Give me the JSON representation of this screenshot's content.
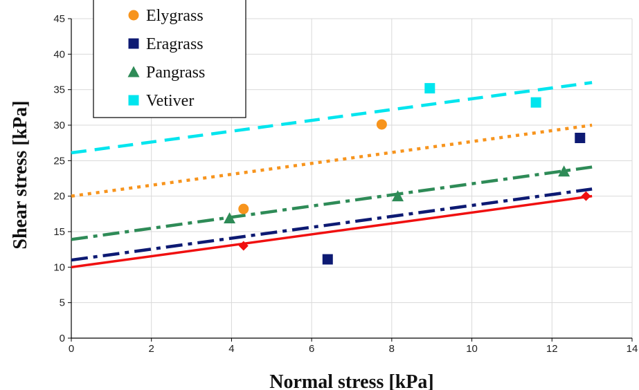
{
  "chart_data": {
    "type": "scatter",
    "title": "",
    "xlabel": "Normal stress [kPa]",
    "ylabel": "Shear stress [kPa]",
    "xlim": [
      0,
      14
    ],
    "ylim": [
      0,
      45
    ],
    "xticks": [
      0,
      2,
      4,
      6,
      8,
      10,
      12,
      14
    ],
    "yticks": [
      0,
      5,
      10,
      15,
      20,
      25,
      30,
      35,
      40,
      45
    ],
    "grid": true,
    "legend_position": "top-left",
    "series": [
      {
        "name": "Elygrass",
        "marker": "circle",
        "color": "#F7941D",
        "points": [
          [
            4.3,
            18.2
          ],
          [
            7.75,
            30.1
          ]
        ],
        "trendline": {
          "style": "dotted",
          "x": [
            0,
            13
          ],
          "y": [
            20,
            30
          ]
        }
      },
      {
        "name": "Eragrass",
        "marker": "square",
        "color": "#0D1A73",
        "points": [
          [
            6.4,
            11.1
          ],
          [
            12.7,
            28.2
          ]
        ],
        "trendline": {
          "style": "dash-dot",
          "x": [
            0,
            13
          ],
          "y": [
            11,
            21
          ]
        }
      },
      {
        "name": "Pangrass",
        "marker": "triangle",
        "color": "#2E8B57",
        "points": [
          [
            3.95,
            16.9
          ],
          [
            8.15,
            20.0
          ],
          [
            12.3,
            23.5
          ]
        ],
        "trendline": {
          "style": "dash-dot",
          "x": [
            0,
            13
          ],
          "y": [
            13.9,
            24.1
          ]
        }
      },
      {
        "name": "Vetiver",
        "marker": "square",
        "color": "#00E5EE",
        "points": [
          [
            8.95,
            35.2
          ],
          [
            11.6,
            33.2
          ]
        ],
        "trendline": {
          "style": "dashed",
          "x": [
            0,
            13
          ],
          "y": [
            26.1,
            36
          ]
        }
      },
      {
        "marker": "diamond",
        "color": "#F01010",
        "points": [
          [
            4.3,
            13.0
          ],
          [
            12.85,
            20.0
          ]
        ],
        "trendline": {
          "style": "solid",
          "x": [
            0,
            13
          ],
          "y": [
            10,
            20
          ]
        }
      }
    ]
  }
}
